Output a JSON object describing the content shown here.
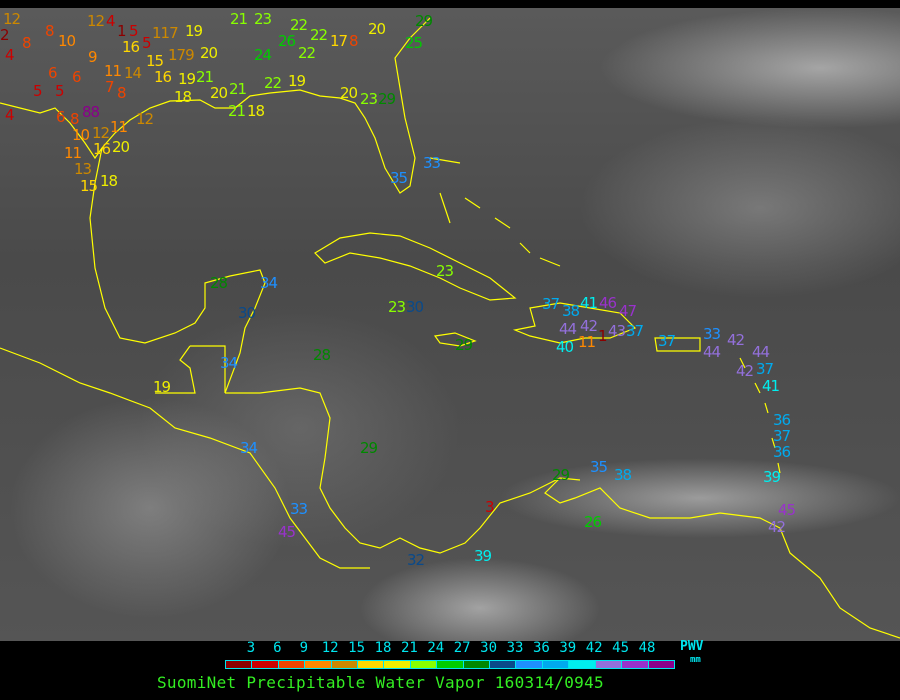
{
  "legend": {
    "ticks": [
      "3",
      "6",
      "9",
      "12",
      "15",
      "18",
      "21",
      "24",
      "27",
      "30",
      "33",
      "36",
      "39",
      "42",
      "45",
      "48"
    ],
    "colors": [
      "#8b0000",
      "#cc0000",
      "#ee4400",
      "#ff8800",
      "#cc8800",
      "#ffd700",
      "#eeee00",
      "#88ff00",
      "#00cc00",
      "#008800",
      "#0a4a8a",
      "#1e90ff",
      "#00aaee",
      "#00eeee",
      "#9370db",
      "#9932cc",
      "#8b008b"
    ],
    "unit_label": "PWV",
    "unit": "mm",
    "tick_color": "#00e5ee"
  },
  "title": "SuomiNet Precipitable Water Vapor 160314/0945",
  "title_color": "#33ee22",
  "coastline_color": "#ffff00",
  "stations": [
    "12",
    "2",
    "8",
    "8",
    "10",
    "4",
    "9",
    "6",
    "6",
    "5",
    "5",
    "11",
    "14",
    "7",
    "8",
    "4",
    "6",
    "8",
    "88",
    "12",
    "10",
    "12",
    "11",
    "16",
    "20",
    "11",
    "13",
    "15",
    "18",
    "12",
    "4",
    "1",
    "5",
    "16",
    "5",
    "117",
    "19",
    "15",
    "179",
    "20",
    "16",
    "19",
    "21",
    "18",
    "20",
    "21",
    "21",
    "18",
    "21",
    "23",
    "22",
    "26",
    "22",
    "24",
    "22",
    "17",
    "8",
    "20",
    "22",
    "19",
    "20",
    "23",
    "29",
    "29",
    "25",
    "33",
    "35",
    "23",
    "28",
    "34",
    "30",
    "23",
    "30",
    "28",
    "29",
    "34",
    "19",
    "34",
    "29",
    "33",
    "45",
    "32",
    "39",
    "3",
    "37",
    "38",
    "41",
    "46",
    "47",
    "42",
    "11",
    "1",
    "43",
    "37",
    "40",
    "44",
    "37",
    "33",
    "42",
    "44",
    "44",
    "37",
    "42",
    "41",
    "36",
    "37",
    "36",
    "39",
    "35",
    "38",
    "29",
    "26",
    "45",
    "42"
  ]
}
